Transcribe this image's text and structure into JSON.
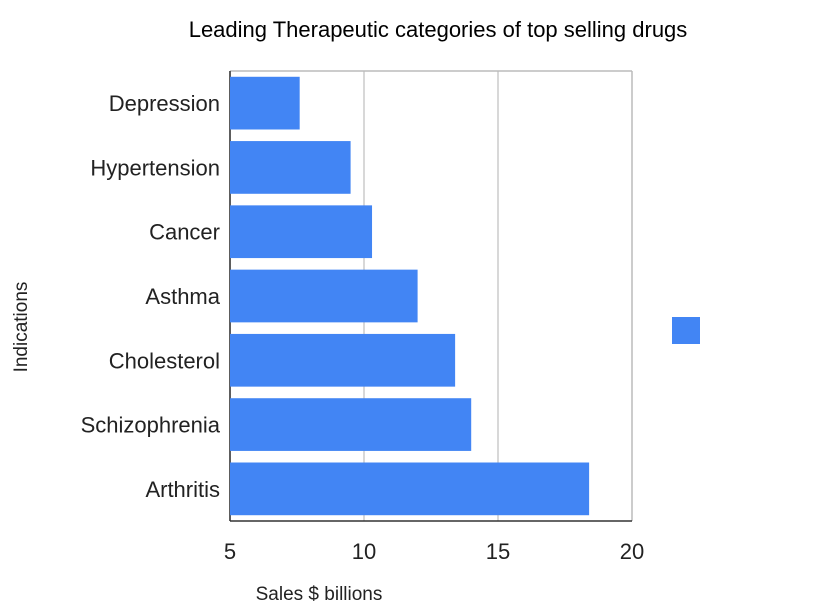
{
  "chart_data": {
    "type": "bar",
    "orientation": "horizontal",
    "title": "Leading Therapeutic categories of top selling drugs",
    "xlabel": "Sales $ billions",
    "ylabel": "Indications",
    "categories": [
      "Depression",
      "Hypertension",
      "Cancer",
      "Asthma",
      "Cholesterol",
      "Schizophrenia",
      "Arthritis"
    ],
    "series": [
      {
        "name": "",
        "values": [
          7.6,
          9.5,
          10.3,
          12.0,
          13.4,
          14.0,
          18.4
        ]
      }
    ],
    "xlim": [
      5,
      20
    ],
    "xticks": [
      "5",
      "10",
      "15",
      "20"
    ],
    "grid": true,
    "legend": "right",
    "colors": {
      "bar": "#4285f4",
      "grid": "#cccccc",
      "axis": "#333333"
    }
  }
}
